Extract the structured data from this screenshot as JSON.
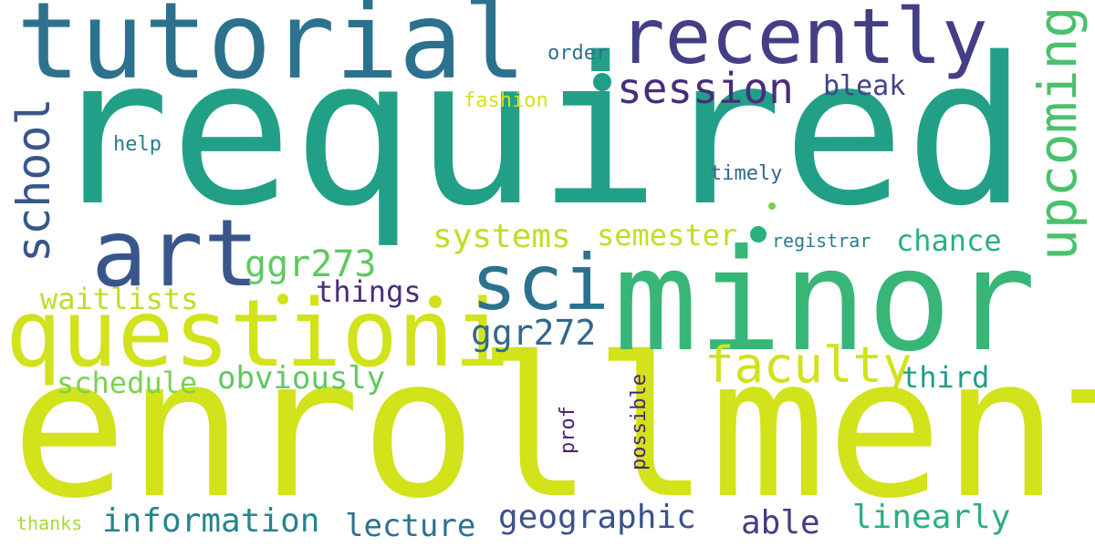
{
  "words": [
    {
      "text": "required",
      "color": "#21a087"
    },
    {
      "text": "enrollment",
      "color": "#d2e21b"
    },
    {
      "text": "minor",
      "color": "#37b678"
    },
    {
      "text": "tutorial",
      "color": "#2c728e"
    },
    {
      "text": "questioni",
      "color": "#d2e21b"
    },
    {
      "text": "recently",
      "color": "#433e85"
    },
    {
      "text": "art",
      "color": "#39568c"
    },
    {
      "text": "sci",
      "color": "#2c728e"
    },
    {
      "text": "faculty",
      "color": "#d2e21b"
    },
    {
      "text": "session",
      "color": "#472d7b"
    },
    {
      "text": "upcoming",
      "color": "#4ac16d"
    },
    {
      "text": "school",
      "color": "#39568c"
    },
    {
      "text": "ggr273",
      "color": "#5ec962"
    },
    {
      "text": "systems",
      "color": "#bddf26"
    },
    {
      "text": "ggr272",
      "color": "#31688e"
    },
    {
      "text": "information",
      "color": "#25848e"
    },
    {
      "text": "geographic",
      "color": "#3b528b"
    },
    {
      "text": "linearly",
      "color": "#2ab07f"
    },
    {
      "text": "able",
      "color": "#433e85"
    },
    {
      "text": "lecture",
      "color": "#2c728e"
    },
    {
      "text": "obviously",
      "color": "#5ec962"
    },
    {
      "text": "schedule",
      "color": "#7ad151"
    },
    {
      "text": "waitlists",
      "color": "#bddf26"
    },
    {
      "text": "things",
      "color": "#472d7b"
    },
    {
      "text": "semester",
      "color": "#bddf26"
    },
    {
      "text": "chance",
      "color": "#2ab07f"
    },
    {
      "text": "third",
      "color": "#1f9e89"
    },
    {
      "text": "bleak",
      "color": "#414487"
    },
    {
      "text": "fashion",
      "color": "#d2e21b"
    },
    {
      "text": "order",
      "color": "#2c728e"
    },
    {
      "text": "help",
      "color": "#287d8e"
    },
    {
      "text": "timely",
      "color": "#31688e"
    },
    {
      "text": "registrar",
      "color": "#287d8e"
    },
    {
      "text": "prof",
      "color": "#482475"
    },
    {
      "text": "possible",
      "color": "#482475"
    },
    {
      "text": "thanks",
      "color": "#a5db36"
    }
  ],
  "dot_colors": [
    "#1f9e89",
    "#3b528b",
    "#d2e21b",
    "#2ab07f",
    "#7ad151",
    "#482475"
  ]
}
